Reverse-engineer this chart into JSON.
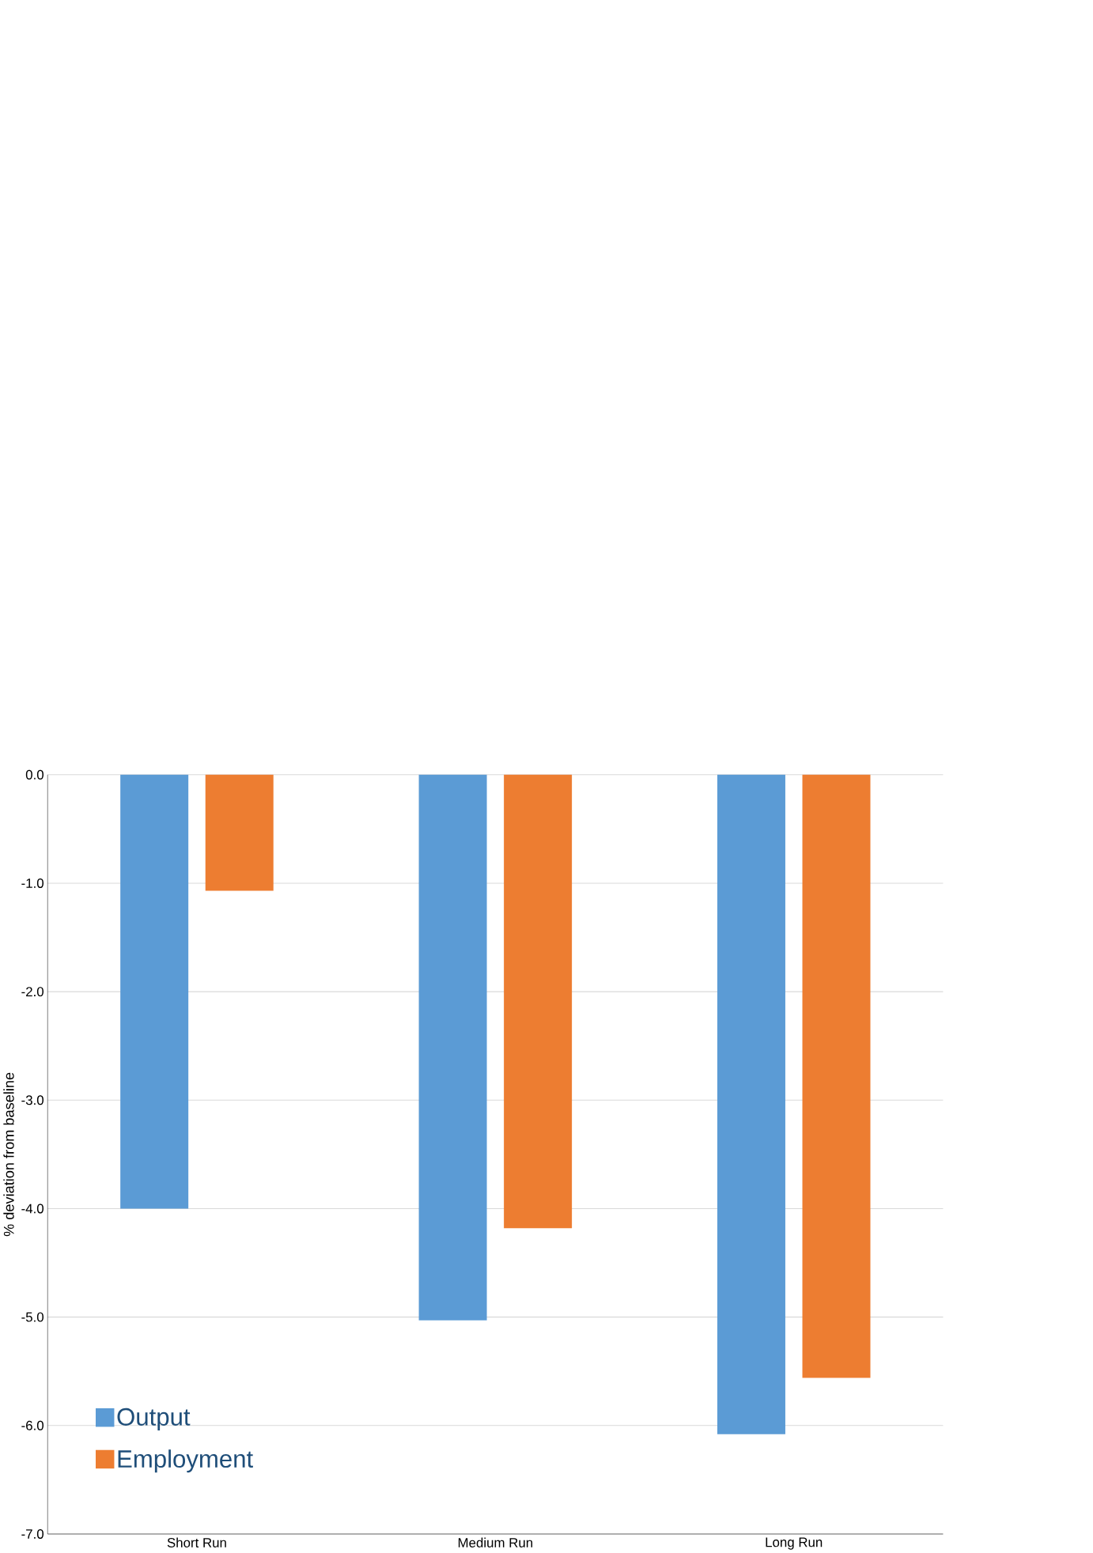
{
  "chart_data": {
    "type": "bar",
    "ylabel": "% deviation from baseline",
    "categories": [
      "Short Run",
      "Medium Run",
      "Long Run"
    ],
    "series": [
      {
        "name": "Output",
        "color": "#5b9bd5",
        "values": [
          -4.0,
          -5.03,
          -6.08
        ]
      },
      {
        "name": "Employment",
        "color": "#ed7d31",
        "values": [
          -1.07,
          -4.18,
          -5.56
        ]
      }
    ],
    "ylim": [
      -7,
      0
    ],
    "yticks": [
      {
        "value": 0,
        "label": "0.0"
      },
      {
        "value": -1,
        "label": "-1.0"
      },
      {
        "value": -2,
        "label": "-2.0"
      },
      {
        "value": -3,
        "label": "-3.0"
      },
      {
        "value": -4,
        "label": "-4.0"
      },
      {
        "value": -5,
        "label": "-5.0"
      },
      {
        "value": -6,
        "label": "-6.0"
      },
      {
        "value": -7,
        "label": "-7.0"
      }
    ],
    "grid": "y",
    "legend": "bottom left"
  }
}
